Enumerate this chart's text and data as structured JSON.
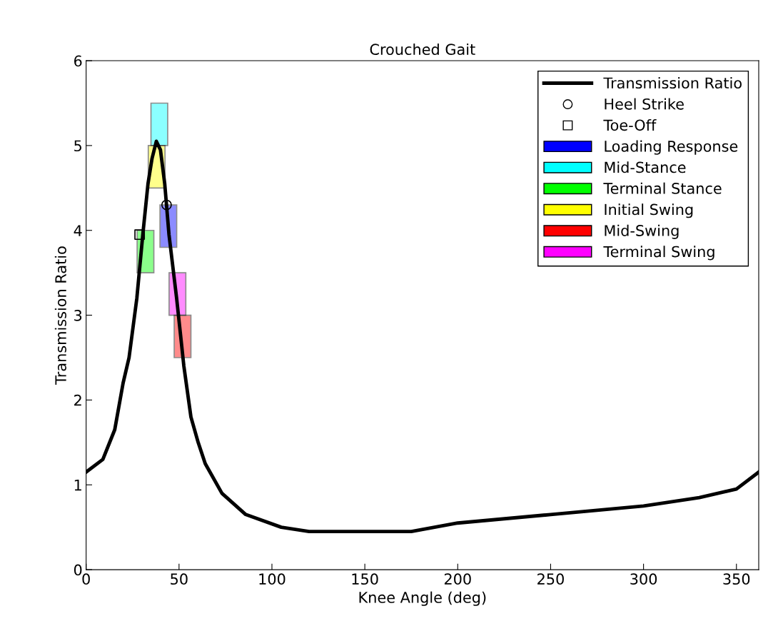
{
  "chart_data": {
    "type": "line",
    "title": "Crouched Gait",
    "xlabel": "Knee Angle (deg)",
    "ylabel": "Transmission Ratio",
    "xlim": [
      0,
      362
    ],
    "xticks": [
      0,
      50,
      100,
      150,
      200,
      250,
      300,
      350
    ],
    "ylim": [
      0,
      6
    ],
    "yticks": [
      0,
      1,
      2,
      3,
      4,
      5,
      6
    ],
    "grid": false,
    "legend": "top right",
    "series": [
      {
        "name": "Transmission Ratio",
        "color": "#000000",
        "line_style": "solid",
        "marker": "none",
        "x": [
          0,
          9,
          15.4,
          19.9,
          23.1,
          27.3,
          30.5,
          33.3,
          35.5,
          37.8,
          40,
          42.3,
          44.6,
          48.7,
          52.6,
          56.4,
          60.3,
          64.1,
          73.1,
          85.9,
          105,
          120,
          137,
          150,
          175,
          200,
          250,
          300,
          330,
          350,
          362
        ],
        "values": [
          1.15,
          1.3,
          1.65,
          2.2,
          2.5,
          3.2,
          3.95,
          4.55,
          4.85,
          5.05,
          4.95,
          4.55,
          3.95,
          3.2,
          2.4,
          1.8,
          1.5,
          1.25,
          0.9,
          0.65,
          0.5,
          0.45,
          0.45,
          0.45,
          0.45,
          0.55,
          0.65,
          0.75,
          0.85,
          0.95,
          1.15
        ]
      },
      {
        "name": "Heel Strike",
        "type": "scatter",
        "color": "#000000",
        "marker": "circle",
        "x": [
          43.3
        ],
        "values": [
          4.3
        ]
      },
      {
        "name": "Toe-Off",
        "type": "scatter",
        "color": "#000000",
        "marker": "square",
        "x": [
          28.8
        ],
        "values": [
          3.95
        ]
      },
      {
        "name": "Loading Response",
        "type": "bar",
        "color": "#0000ff",
        "x": [
          44.25
        ],
        "base": [
          3.8
        ],
        "values": [
          0.5
        ]
      },
      {
        "name": "Mid-Stance",
        "type": "bar",
        "color": "#00ffff",
        "x": [
          39.4
        ],
        "base": [
          5.0
        ],
        "values": [
          0.5
        ]
      },
      {
        "name": "Terminal Stance",
        "type": "bar",
        "color": "#00ff00",
        "x": [
          31.95
        ],
        "base": [
          3.5
        ],
        "values": [
          0.5
        ]
      },
      {
        "name": "Initial Swing",
        "type": "bar",
        "color": "#ffff00",
        "x": [
          37.95
        ],
        "base": [
          4.5
        ],
        "values": [
          0.5
        ]
      },
      {
        "name": "Mid-Swing",
        "type": "bar",
        "color": "#ff0000",
        "x": [
          51.9
        ],
        "base": [
          2.5
        ],
        "values": [
          0.5
        ]
      },
      {
        "name": "Terminal Swing",
        "type": "bar",
        "color": "#ff00ff",
        "x": [
          49.15
        ],
        "base": [
          3.0
        ],
        "values": [
          0.5
        ]
      }
    ]
  }
}
